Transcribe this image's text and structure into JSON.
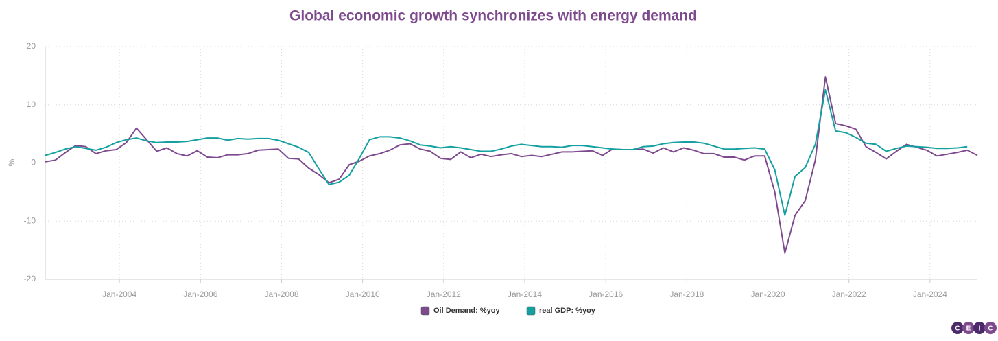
{
  "chart_data": {
    "type": "line",
    "title": "Global economic growth synchronizes with energy demand",
    "y_label": "%",
    "x": [
      2002.17,
      2002.42,
      2002.67,
      2002.92,
      2003.17,
      2003.42,
      2003.67,
      2003.92,
      2004.17,
      2004.42,
      2004.67,
      2004.92,
      2005.17,
      2005.42,
      2005.67,
      2005.92,
      2006.17,
      2006.42,
      2006.67,
      2006.92,
      2007.17,
      2007.42,
      2007.67,
      2007.92,
      2008.17,
      2008.42,
      2008.67,
      2008.92,
      2009.17,
      2009.42,
      2009.67,
      2009.92,
      2010.17,
      2010.42,
      2010.67,
      2010.92,
      2011.17,
      2011.42,
      2011.67,
      2011.92,
      2012.17,
      2012.42,
      2012.67,
      2012.92,
      2013.17,
      2013.42,
      2013.67,
      2013.92,
      2014.17,
      2014.42,
      2014.67,
      2014.92,
      2015.17,
      2015.42,
      2015.67,
      2015.92,
      2016.17,
      2016.42,
      2016.67,
      2016.92,
      2017.17,
      2017.42,
      2017.67,
      2017.92,
      2018.17,
      2018.42,
      2018.67,
      2018.92,
      2019.17,
      2019.42,
      2019.67,
      2019.92,
      2020.17,
      2020.42,
      2020.67,
      2020.92,
      2021.17,
      2021.42,
      2021.67,
      2021.92,
      2022.17,
      2022.42,
      2022.67,
      2022.92,
      2023.17,
      2023.42,
      2023.67,
      2023.92,
      2024.17,
      2024.42,
      2024.67,
      2024.92,
      2025.17
    ],
    "series": [
      {
        "name": "Oil Demand: %yoy",
        "color": "#7e4a8e",
        "values": [
          0.2,
          0.5,
          1.8,
          3.0,
          2.8,
          1.6,
          2.1,
          2.3,
          3.5,
          6.0,
          4.0,
          2.0,
          2.6,
          1.6,
          1.2,
          2.1,
          1.0,
          0.9,
          1.4,
          1.4,
          1.6,
          2.2,
          2.3,
          2.4,
          0.8,
          0.7,
          -0.9,
          -2.0,
          -3.4,
          -2.8,
          -0.3,
          0.3,
          1.2,
          1.6,
          2.2,
          3.1,
          3.3,
          2.4,
          2.0,
          0.8,
          0.6,
          1.9,
          0.9,
          1.5,
          1.1,
          1.4,
          1.6,
          1.1,
          1.3,
          1.1,
          1.5,
          1.9,
          1.9,
          2.0,
          2.1,
          1.3,
          2.4,
          2.3,
          2.3,
          2.4,
          1.7,
          2.6,
          1.9,
          2.6,
          2.2,
          1.6,
          1.6,
          1.0,
          1.0,
          0.5,
          1.2,
          1.2,
          -5.0,
          -15.5,
          -9.0,
          -6.5,
          0.5,
          14.8,
          6.8,
          6.4,
          5.8,
          2.8,
          1.8,
          0.7,
          2.0,
          3.2,
          2.7,
          2.2,
          1.2,
          1.5,
          1.8,
          2.2,
          1.3
        ]
      },
      {
        "name": "real GDP: %yoy",
        "color": "#14a0a0",
        "values": [
          1.3,
          1.8,
          2.4,
          2.8,
          2.5,
          2.2,
          2.7,
          3.5,
          4.0,
          4.3,
          3.8,
          3.5,
          3.6,
          3.6,
          3.7,
          4.0,
          4.3,
          4.3,
          3.9,
          4.2,
          4.1,
          4.2,
          4.2,
          3.9,
          3.3,
          2.7,
          1.8,
          -1.0,
          -3.7,
          -3.3,
          -2.1,
          0.8,
          4.0,
          4.5,
          4.5,
          4.3,
          3.8,
          3.1,
          2.9,
          2.6,
          2.8,
          2.6,
          2.3,
          2.0,
          2.0,
          2.4,
          2.9,
          3.2,
          3.0,
          2.8,
          2.8,
          2.7,
          3.0,
          3.0,
          2.8,
          2.6,
          2.4,
          2.3,
          2.3,
          2.8,
          2.9,
          3.3,
          3.5,
          3.6,
          3.6,
          3.4,
          2.9,
          2.4,
          2.4,
          2.5,
          2.6,
          2.4,
          -1.2,
          -9.0,
          -2.3,
          -0.8,
          3.2,
          12.6,
          5.5,
          5.2,
          4.4,
          3.4,
          3.2,
          2.0,
          2.5,
          2.9,
          2.8,
          2.7,
          2.5,
          2.5,
          2.6,
          2.8,
          null
        ]
      }
    ],
    "xlim": [
      2002.17,
      2025.17
    ],
    "xticks": [
      {
        "value": 2004,
        "label": "Jan-2004"
      },
      {
        "value": 2006,
        "label": "Jan-2006"
      },
      {
        "value": 2008,
        "label": "Jan-2008"
      },
      {
        "value": 2010,
        "label": "Jan-2010"
      },
      {
        "value": 2012,
        "label": "Jan-2012"
      },
      {
        "value": 2014,
        "label": "Jan-2014"
      },
      {
        "value": 2016,
        "label": "Jan-2016"
      },
      {
        "value": 2018,
        "label": "Jan-2018"
      },
      {
        "value": 2020,
        "label": "Jan-2020"
      },
      {
        "value": 2022,
        "label": "Jan-2022"
      },
      {
        "value": 2024,
        "label": "Jan-2024"
      }
    ],
    "ylim": [
      -20,
      20
    ],
    "yticks": [
      20,
      10,
      0,
      -10,
      -20
    ],
    "grid": true,
    "legend": "bottom",
    "logo": [
      "C",
      "E",
      "I",
      "C"
    ]
  }
}
